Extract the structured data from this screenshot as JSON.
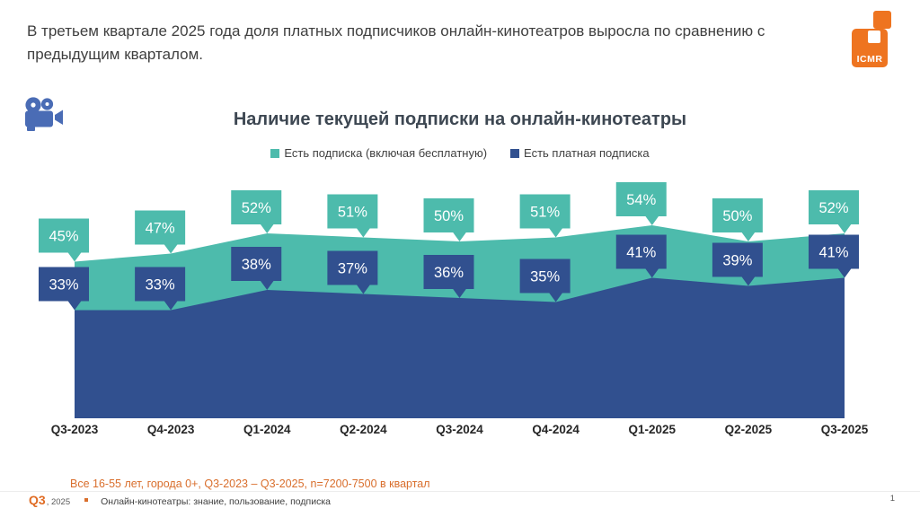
{
  "slide": {
    "headline": "В третьем квартале 2025 года доля платных подписчиков онлайн-кинотеатров выросла по сравнению с предыдущим кварталом."
  },
  "logo": {
    "text": "ICMR",
    "color": "#ee7420"
  },
  "icons": {
    "camera": "movie-camera-icon",
    "camera_color": "#4a6cb5"
  },
  "chart_data": {
    "type": "area",
    "title": "Наличие текущей подписки на онлайн-кинотеатры",
    "categories": [
      "Q3-2023",
      "Q4-2023",
      "Q1-2024",
      "Q2-2024",
      "Q3-2024",
      "Q4-2024",
      "Q1-2025",
      "Q2-2025",
      "Q3-2025"
    ],
    "series": [
      {
        "name": "Есть подписка (включая бесплатную)",
        "color": "#4dbbac",
        "values": [
          45,
          47,
          52,
          51,
          50,
          51,
          54,
          50,
          52
        ]
      },
      {
        "name": "Есть платная подписка",
        "color": "#31508f",
        "values": [
          33,
          33,
          38,
          37,
          36,
          35,
          41,
          39,
          41
        ]
      }
    ],
    "unit": "%",
    "ylim": [
      0,
      60
    ],
    "grid": false,
    "legend_position": "top",
    "data_labels": "callout"
  },
  "footnote": "Все 16-55 лет,  города 0+, Q3-2023 – Q3-2025, n=7200-7500 в квартал",
  "footer": {
    "quarter": "Q3",
    "year_suffix": ", 2025",
    "source": "Онлайн-кинотеатры: знание, пользование, подписка",
    "page": "1"
  }
}
